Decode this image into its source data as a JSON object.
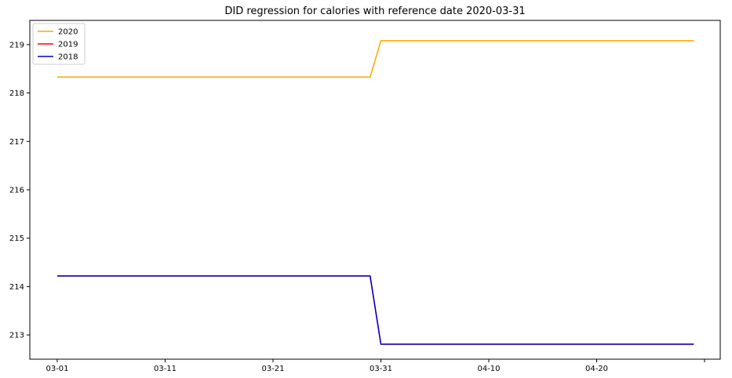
{
  "chart_data": {
    "type": "line",
    "title": "DID regression for calories with reference date 2020-03-31",
    "xlabel": "",
    "ylabel": "",
    "x": [
      "03-01",
      "03-30",
      "03-31",
      "04-29"
    ],
    "x_ticks": [
      "03-01",
      "03-11",
      "03-21",
      "03-31",
      "04-10",
      "04-20",
      ""
    ],
    "y_ticks": [
      "213",
      "214",
      "215",
      "216",
      "217",
      "218",
      "219"
    ],
    "ylim": [
      212.5,
      219.5
    ],
    "grid": false,
    "legend": "top-left",
    "series": [
      {
        "name": "2020",
        "color": "#ffa500",
        "values": [
          218.33,
          218.33,
          219.08,
          219.08
        ]
      },
      {
        "name": "2019",
        "color": "#ff0000",
        "values": [
          214.22,
          214.22,
          212.81,
          212.81
        ]
      },
      {
        "name": "2018",
        "color": "#0000cc",
        "values": [
          214.22,
          214.22,
          212.81,
          212.81
        ]
      }
    ]
  }
}
